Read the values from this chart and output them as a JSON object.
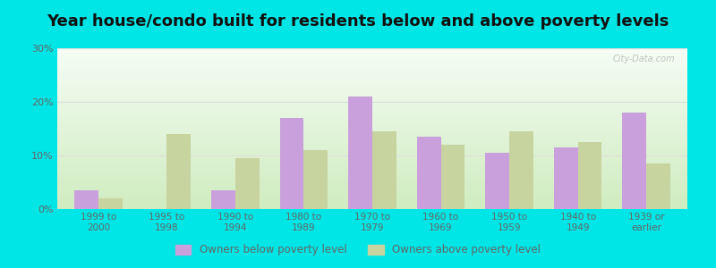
{
  "title": "Year house/condo built for residents below and above poverty levels",
  "categories": [
    "1999 to\n2000",
    "1995 to\n1998",
    "1990 to\n1994",
    "1980 to\n1989",
    "1970 to\n1979",
    "1960 to\n1969",
    "1950 to\n1959",
    "1940 to\n1949",
    "1939 or\nearlier"
  ],
  "below_poverty": [
    3.5,
    0.0,
    3.5,
    17.0,
    21.0,
    13.5,
    10.5,
    11.5,
    18.0
  ],
  "above_poverty": [
    2.0,
    14.0,
    9.5,
    11.0,
    14.5,
    12.0,
    14.5,
    12.5,
    8.5
  ],
  "below_color": "#c9a0dc",
  "above_color": "#c8d4a0",
  "grad_top": "#f5fdf5",
  "grad_bottom": "#d0ecc0",
  "outer_background": "#00e5e5",
  "ylim": [
    0,
    30
  ],
  "yticks": [
    0,
    10,
    20,
    30
  ],
  "legend_below": "Owners below poverty level",
  "legend_above": "Owners above poverty level",
  "title_fontsize": 13,
  "bar_width": 0.35,
  "title_color": "#111111",
  "tick_color": "#666666",
  "grid_color": "#dddddd",
  "watermark": "City-Data.com"
}
